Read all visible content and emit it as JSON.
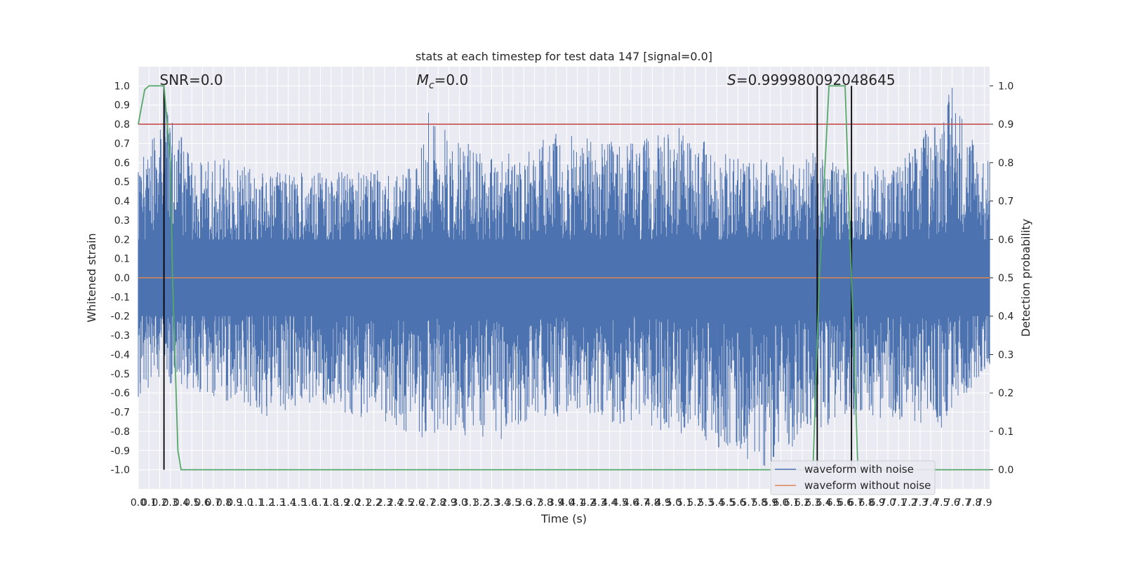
{
  "chart_data": {
    "type": "line",
    "title": "stats at each timestep for test data 147 [signal=0.0]",
    "xlabel": "Time (s)",
    "ylabel": "Whitened strain",
    "ylabel_right": "Detection probability",
    "xlim": [
      0.0,
      7.95
    ],
    "ylim": [
      -1.1,
      1.1
    ],
    "ylim_right": [
      -0.05,
      1.05
    ],
    "x_ticks": [
      "0.0",
      "0.1",
      "0.2",
      "0.3",
      "0.4",
      "0.5",
      "0.6",
      "0.7",
      "0.8",
      "0.9",
      "1.0",
      "1.1",
      "1.2",
      "1.3",
      "1.4",
      "1.5",
      "1.6",
      "1.7",
      "1.8",
      "1.9",
      "2.0",
      "2.1",
      "2.2",
      "2.3",
      "2.4",
      "2.5",
      "2.6",
      "2.7",
      "2.8",
      "2.9",
      "3.0",
      "3.1",
      "3.2",
      "3.3",
      "3.4",
      "3.5",
      "3.6",
      "3.7",
      "3.8",
      "3.9",
      "4.0",
      "4.1",
      "4.2",
      "4.3",
      "4.4",
      "4.5",
      "4.6",
      "4.7",
      "4.8",
      "4.9",
      "5.0",
      "5.1",
      "5.2",
      "5.3",
      "5.4",
      "5.5",
      "5.6",
      "5.7",
      "5.8",
      "5.9",
      "6.0",
      "6.1",
      "6.2",
      "6.3",
      "6.4",
      "6.5",
      "6.6",
      "6.7",
      "6.8",
      "6.9",
      "7.0",
      "7.1",
      "7.2",
      "7.3",
      "7.4",
      "7.5",
      "7.6",
      "7.7",
      "7.8",
      "7.9"
    ],
    "y_ticks": [
      "1.0",
      "0.9",
      "0.8",
      "0.7",
      "0.6",
      "0.5",
      "0.4",
      "0.3",
      "0.2",
      "0.1",
      "0.0",
      "-0.1",
      "-0.2",
      "-0.3",
      "-0.4",
      "-0.5",
      "-0.6",
      "-0.7",
      "-0.8",
      "-0.9",
      "-1.0"
    ],
    "y_ticks_right": [
      "1.0",
      "0.9",
      "0.8",
      "0.7",
      "0.6",
      "0.5",
      "0.4",
      "0.3",
      "0.2",
      "0.1",
      "0.0"
    ],
    "annotations": {
      "snr": "SNR=0.0",
      "mc_symbol": "M",
      "mc_sub": "c",
      "mc_value": "=0.0",
      "s_symbol": "S",
      "s_value": "=0.999980092048645"
    },
    "series": [
      {
        "name": "waveform with noise",
        "color": "#4c72b0",
        "description_values": "noise",
        "envelope_upper": [
          [
            0.0,
            0.55
          ],
          [
            0.05,
            0.63
          ],
          [
            0.25,
            0.95
          ],
          [
            0.5,
            0.6
          ],
          [
            0.8,
            0.62
          ],
          [
            1.3,
            0.55
          ],
          [
            1.9,
            0.55
          ],
          [
            2.6,
            0.57
          ],
          [
            2.71,
            0.86
          ],
          [
            3.3,
            0.62
          ],
          [
            3.9,
            0.75
          ],
          [
            4.6,
            0.7
          ],
          [
            5.05,
            0.78
          ],
          [
            5.6,
            0.62
          ],
          [
            6.3,
            0.65
          ],
          [
            6.7,
            0.55
          ],
          [
            7.2,
            0.65
          ],
          [
            7.6,
            0.99
          ],
          [
            7.95,
            0.6
          ]
        ],
        "envelope_lower": [
          [
            0.0,
            -0.62
          ],
          [
            0.3,
            -0.55
          ],
          [
            1.2,
            -0.72
          ],
          [
            1.6,
            -0.65
          ],
          [
            2.5,
            -0.8
          ],
          [
            2.65,
            -0.83
          ],
          [
            3.39,
            -0.84
          ],
          [
            3.8,
            -0.72
          ],
          [
            4.5,
            -0.76
          ],
          [
            5.07,
            -0.81
          ],
          [
            5.85,
            -0.98
          ],
          [
            6.6,
            -0.71
          ],
          [
            7.5,
            -0.78
          ],
          [
            7.95,
            -0.45
          ]
        ]
      },
      {
        "name": "waveform without noise",
        "color": "#dd8452",
        "x": [
          0.0,
          7.95
        ],
        "y": [
          0.0,
          0.0
        ]
      },
      {
        "name": "detection probability",
        "color": "#55a868",
        "axis": "right",
        "x": [
          0.0,
          0.06,
          0.1,
          0.17,
          0.2,
          0.24,
          0.3,
          0.32,
          0.37,
          0.4,
          6.3,
          6.36,
          6.45,
          6.6,
          6.66,
          6.72,
          7.95
        ],
        "y": [
          0.9,
          0.99,
          1.0,
          1.0,
          1.0,
          1.0,
          0.8,
          0.5,
          0.05,
          0.0,
          0.0,
          0.5,
          1.0,
          1.0,
          0.5,
          0.0,
          0.0
        ]
      }
    ],
    "threshold_right": 0.9,
    "threshold_color": "#c44e52",
    "vertical_markers_x": [
      0.24,
      6.34,
      6.66
    ],
    "legend_placement": "lower right",
    "grid": true
  }
}
